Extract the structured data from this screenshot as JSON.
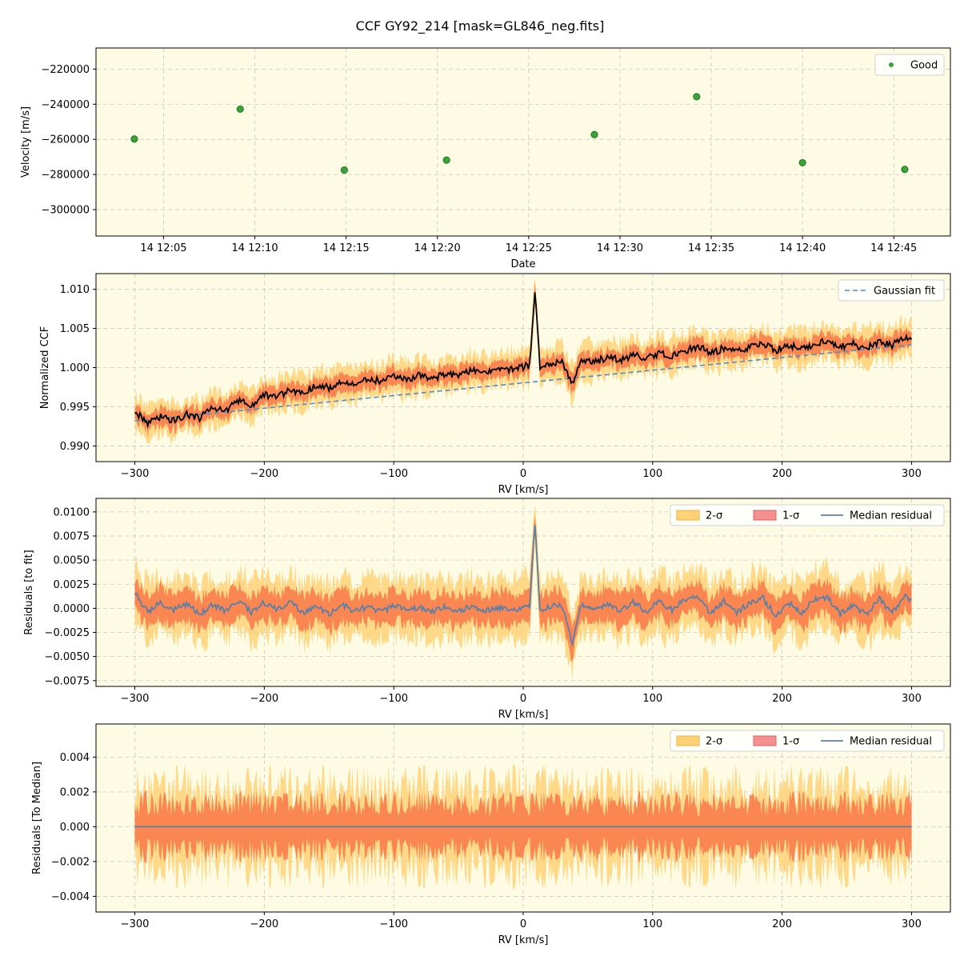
{
  "title": "CCF GY92_214 [mask=GL846_neg.fits]",
  "colors": {
    "panel_bg": "#fdfbe3",
    "grid": "#c8c8c8",
    "good_point": "#3aa33a",
    "ccf_line": "#000000",
    "gauss_fit": "#4a8fc8",
    "band_2sigma": "#ffd278",
    "band_1sigma": "#f97d4c",
    "median_residual": "#5b80a8"
  },
  "chart_data": [
    {
      "type": "scatter",
      "xlabel": "Date",
      "ylabel": "Velocity [m/s]",
      "x_ticks": [
        "14 12:05",
        "14 12:10",
        "14 12:15",
        "14 12:20",
        "14 12:25",
        "14 12:30",
        "14 12:35",
        "14 12:40",
        "14 12:45"
      ],
      "x_tick_minutes": [
        5,
        10,
        15,
        20,
        25,
        30,
        35,
        40,
        45
      ],
      "xlim_minutes": [
        1.3,
        48.1
      ],
      "ylim": [
        -315000,
        -208000
      ],
      "y_ticks": [
        -220000,
        -240000,
        -260000,
        -280000,
        -300000
      ],
      "y_tick_labels": [
        "−220000",
        "−240000",
        "−260000",
        "−280000",
        "−300000"
      ],
      "legend": [
        "Good"
      ],
      "legend_position": "upper right",
      "grid": true,
      "series": [
        {
          "name": "Good",
          "time_minutes": [
            3.4,
            9.2,
            14.9,
            20.5,
            28.6,
            34.2,
            40.0,
            45.6
          ],
          "values": [
            -259800,
            -242800,
            -277500,
            -271800,
            -257300,
            -235700,
            -273300,
            -277100
          ]
        }
      ]
    },
    {
      "type": "line",
      "xlabel": "RV [km/s]",
      "ylabel": "Normalized CCF",
      "xlim": [
        -330,
        330
      ],
      "ylim": [
        0.988,
        1.012
      ],
      "x_ticks": [
        -300,
        -200,
        -100,
        0,
        100,
        200,
        300
      ],
      "x_tick_labels": [
        "−300",
        "−200",
        "−100",
        "0",
        "100",
        "200",
        "300"
      ],
      "y_ticks": [
        0.99,
        0.995,
        1.0,
        1.005,
        1.01
      ],
      "y_tick_labels": [
        "0.990",
        "0.995",
        "1.000",
        "1.005",
        "1.010"
      ],
      "legend": [
        "Gaussian fit"
      ],
      "legend_position": "upper right",
      "grid": true,
      "series": [
        {
          "name": "Gaussian fit",
          "style": "dashed",
          "rv": [
            -300,
            300
          ],
          "values": [
            0.9932,
            1.0029
          ]
        },
        {
          "name": "CCF median",
          "rv": [
            -300,
            -290,
            -280,
            -270,
            -260,
            -250,
            -240,
            -230,
            -220,
            -210,
            -200,
            -190,
            -180,
            -170,
            -160,
            -150,
            -140,
            -130,
            -120,
            -110,
            -100,
            -90,
            -80,
            -70,
            -60,
            -50,
            -40,
            -30,
            -20,
            -10,
            0,
            5,
            9,
            13,
            20,
            30,
            38,
            45,
            55,
            65,
            75,
            85,
            95,
            105,
            115,
            125,
            135,
            145,
            155,
            165,
            175,
            185,
            195,
            205,
            215,
            225,
            235,
            245,
            255,
            265,
            275,
            285,
            295,
            300
          ],
          "values": [
            0.9945,
            0.9928,
            0.9938,
            0.9932,
            0.994,
            0.9936,
            0.9948,
            0.9945,
            0.9958,
            0.9952,
            0.9966,
            0.9962,
            0.9972,
            0.9968,
            0.9978,
            0.9974,
            0.9982,
            0.9978,
            0.9986,
            0.9983,
            0.9988,
            0.9984,
            0.999,
            0.9986,
            0.9992,
            0.999,
            0.9996,
            0.9993,
            0.9999,
            0.9997,
            1.0001,
            1.0003,
            1.0097,
            1.0002,
            1.0004,
            1.0007,
            0.9978,
            1.001,
            1.0007,
            1.0013,
            1.001,
            1.0016,
            1.0012,
            1.0018,
            1.0015,
            1.002,
            1.0028,
            1.0018,
            1.0025,
            1.002,
            1.0026,
            1.0032,
            1.0022,
            1.0028,
            1.0025,
            1.003,
            1.0034,
            1.0026,
            1.003,
            1.0024,
            1.0034,
            1.0028,
            1.004,
            1.0036
          ]
        }
      ]
    },
    {
      "type": "line",
      "xlabel": "RV [km/s]",
      "ylabel": "Residuals [to fit]",
      "xlim": [
        -330,
        330
      ],
      "ylim": [
        -0.0081,
        0.0114
      ],
      "x_ticks": [
        -300,
        -200,
        -100,
        0,
        100,
        200,
        300
      ],
      "x_tick_labels": [
        "−300",
        "−200",
        "−100",
        "0",
        "100",
        "200",
        "300"
      ],
      "y_ticks": [
        0.01,
        0.0075,
        0.005,
        0.0025,
        0.0,
        -0.0025,
        -0.005,
        -0.0075
      ],
      "y_tick_labels": [
        "0.0100",
        "0.0075",
        "0.0050",
        "0.0025",
        "0.0000",
        "−0.0025",
        "−0.0050",
        "−0.0075"
      ],
      "legend": [
        "2-σ",
        "1-σ",
        "Median residual"
      ],
      "legend_position": "upper right",
      "grid": true,
      "series": [
        {
          "name": "2-σ",
          "halfwidth": 0.003
        },
        {
          "name": "1-σ",
          "halfwidth": 0.0016
        },
        {
          "name": "Median residual",
          "rv": [
            -300,
            -290,
            -280,
            -270,
            -260,
            -250,
            -240,
            -230,
            -220,
            -210,
            -200,
            -190,
            -180,
            -170,
            -160,
            -150,
            -140,
            -130,
            -120,
            -110,
            -100,
            -90,
            -80,
            -70,
            -60,
            -50,
            -40,
            -30,
            -20,
            -10,
            0,
            5,
            9,
            13,
            20,
            30,
            38,
            45,
            55,
            65,
            75,
            85,
            95,
            105,
            115,
            125,
            135,
            145,
            155,
            165,
            175,
            185,
            195,
            205,
            215,
            225,
            235,
            245,
            255,
            265,
            275,
            285,
            295,
            300
          ],
          "values": [
            0.0016,
            -0.0004,
            0.0006,
            -0.0002,
            0.0005,
            -0.0007,
            0.0004,
            -0.0003,
            0.0008,
            -0.0004,
            0.0006,
            -0.0002,
            0.0007,
            -0.0005,
            0.0003,
            -0.0006,
            0.0004,
            -0.0003,
            0.0002,
            -0.0004,
            0.0003,
            -0.0002,
            0.0001,
            -0.0003,
            0.0002,
            -0.0004,
            0.0003,
            -0.0002,
            0.0001,
            -0.0001,
            0.0,
            0.0002,
            0.0089,
            -0.0001,
            0.0002,
            0.0003,
            -0.0037,
            0.0004,
            -0.0002,
            0.0005,
            -0.0003,
            0.0007,
            -0.0004,
            0.0008,
            -0.0002,
            0.001,
            0.0012,
            -0.0006,
            0.0008,
            -0.0004,
            0.0006,
            0.0011,
            -0.0008,
            0.0005,
            -0.0004,
            0.0009,
            0.0012,
            -0.0006,
            0.0004,
            -0.0007,
            0.001,
            -0.0005,
            0.0014,
            0.0008
          ]
        }
      ]
    },
    {
      "type": "area",
      "xlabel": "RV [km/s]",
      "ylabel": "Residuals [To Median]",
      "xlim": [
        -330,
        330
      ],
      "ylim": [
        -0.0049,
        0.0059
      ],
      "x_ticks": [
        -300,
        -200,
        -100,
        0,
        100,
        200,
        300
      ],
      "x_tick_labels": [
        "−300",
        "−200",
        "−100",
        "0",
        "100",
        "200",
        "300"
      ],
      "y_ticks": [
        0.004,
        0.002,
        0.0,
        -0.002,
        -0.004
      ],
      "y_tick_labels": [
        "0.004",
        "0.002",
        "0.000",
        "−0.002",
        "−0.004"
      ],
      "legend": [
        "2-σ",
        "1-σ",
        "Median residual"
      ],
      "legend_position": "upper right",
      "grid": true,
      "series": [
        {
          "name": "2-σ",
          "halfwidth": 0.0026
        },
        {
          "name": "1-σ",
          "halfwidth": 0.0015
        },
        {
          "name": "Median residual",
          "rv": [
            -300,
            300
          ],
          "values": [
            0.0,
            0.0
          ]
        }
      ]
    }
  ]
}
